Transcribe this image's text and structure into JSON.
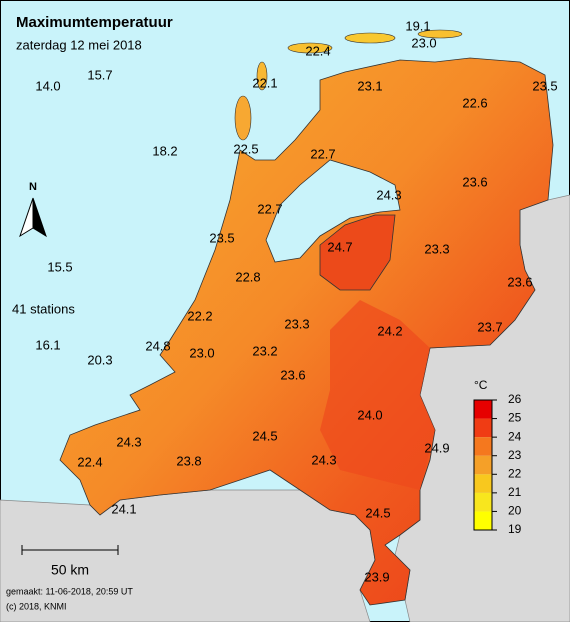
{
  "header": {
    "title": "Maximumtemperatuur",
    "subtitle": "zaterdag 12 mei 2018"
  },
  "stations": [
    "19.1",
    "22.4",
    "23.0",
    "14.0",
    "15.7",
    "22.1",
    "23.1",
    "22.6",
    "23.5",
    "18.2",
    "22.5",
    "22.7",
    "24.3",
    "23.6",
    "22.7",
    "23.5",
    "24.7",
    "23.3",
    "15.5",
    "23.6",
    "22.8",
    "22.2",
    "23.3",
    "24.2",
    "23.7",
    "16.1",
    "24.8",
    "23.0",
    "23.2",
    "20.3",
    "23.6",
    "24.0",
    "24.5",
    "24.9",
    "24.3",
    "24.3",
    "23.8",
    "22.4",
    "24.1",
    "24.5",
    "23.9"
  ],
  "station_count": "41 stations",
  "legend": {
    "unit": "°C",
    "ticks": [
      26,
      25,
      24,
      23,
      22,
      21,
      20,
      19
    ],
    "colors": [
      "#e60000",
      "#f03c14",
      "#f5781e",
      "#f5a028",
      "#f8c81e",
      "#f8e61e",
      "#ffff00"
    ]
  },
  "scale": "50 km",
  "footer": [
    "gemaakt: 11-06-2018, 20:59 UT",
    "(c) 2018, KNMI"
  ]
}
